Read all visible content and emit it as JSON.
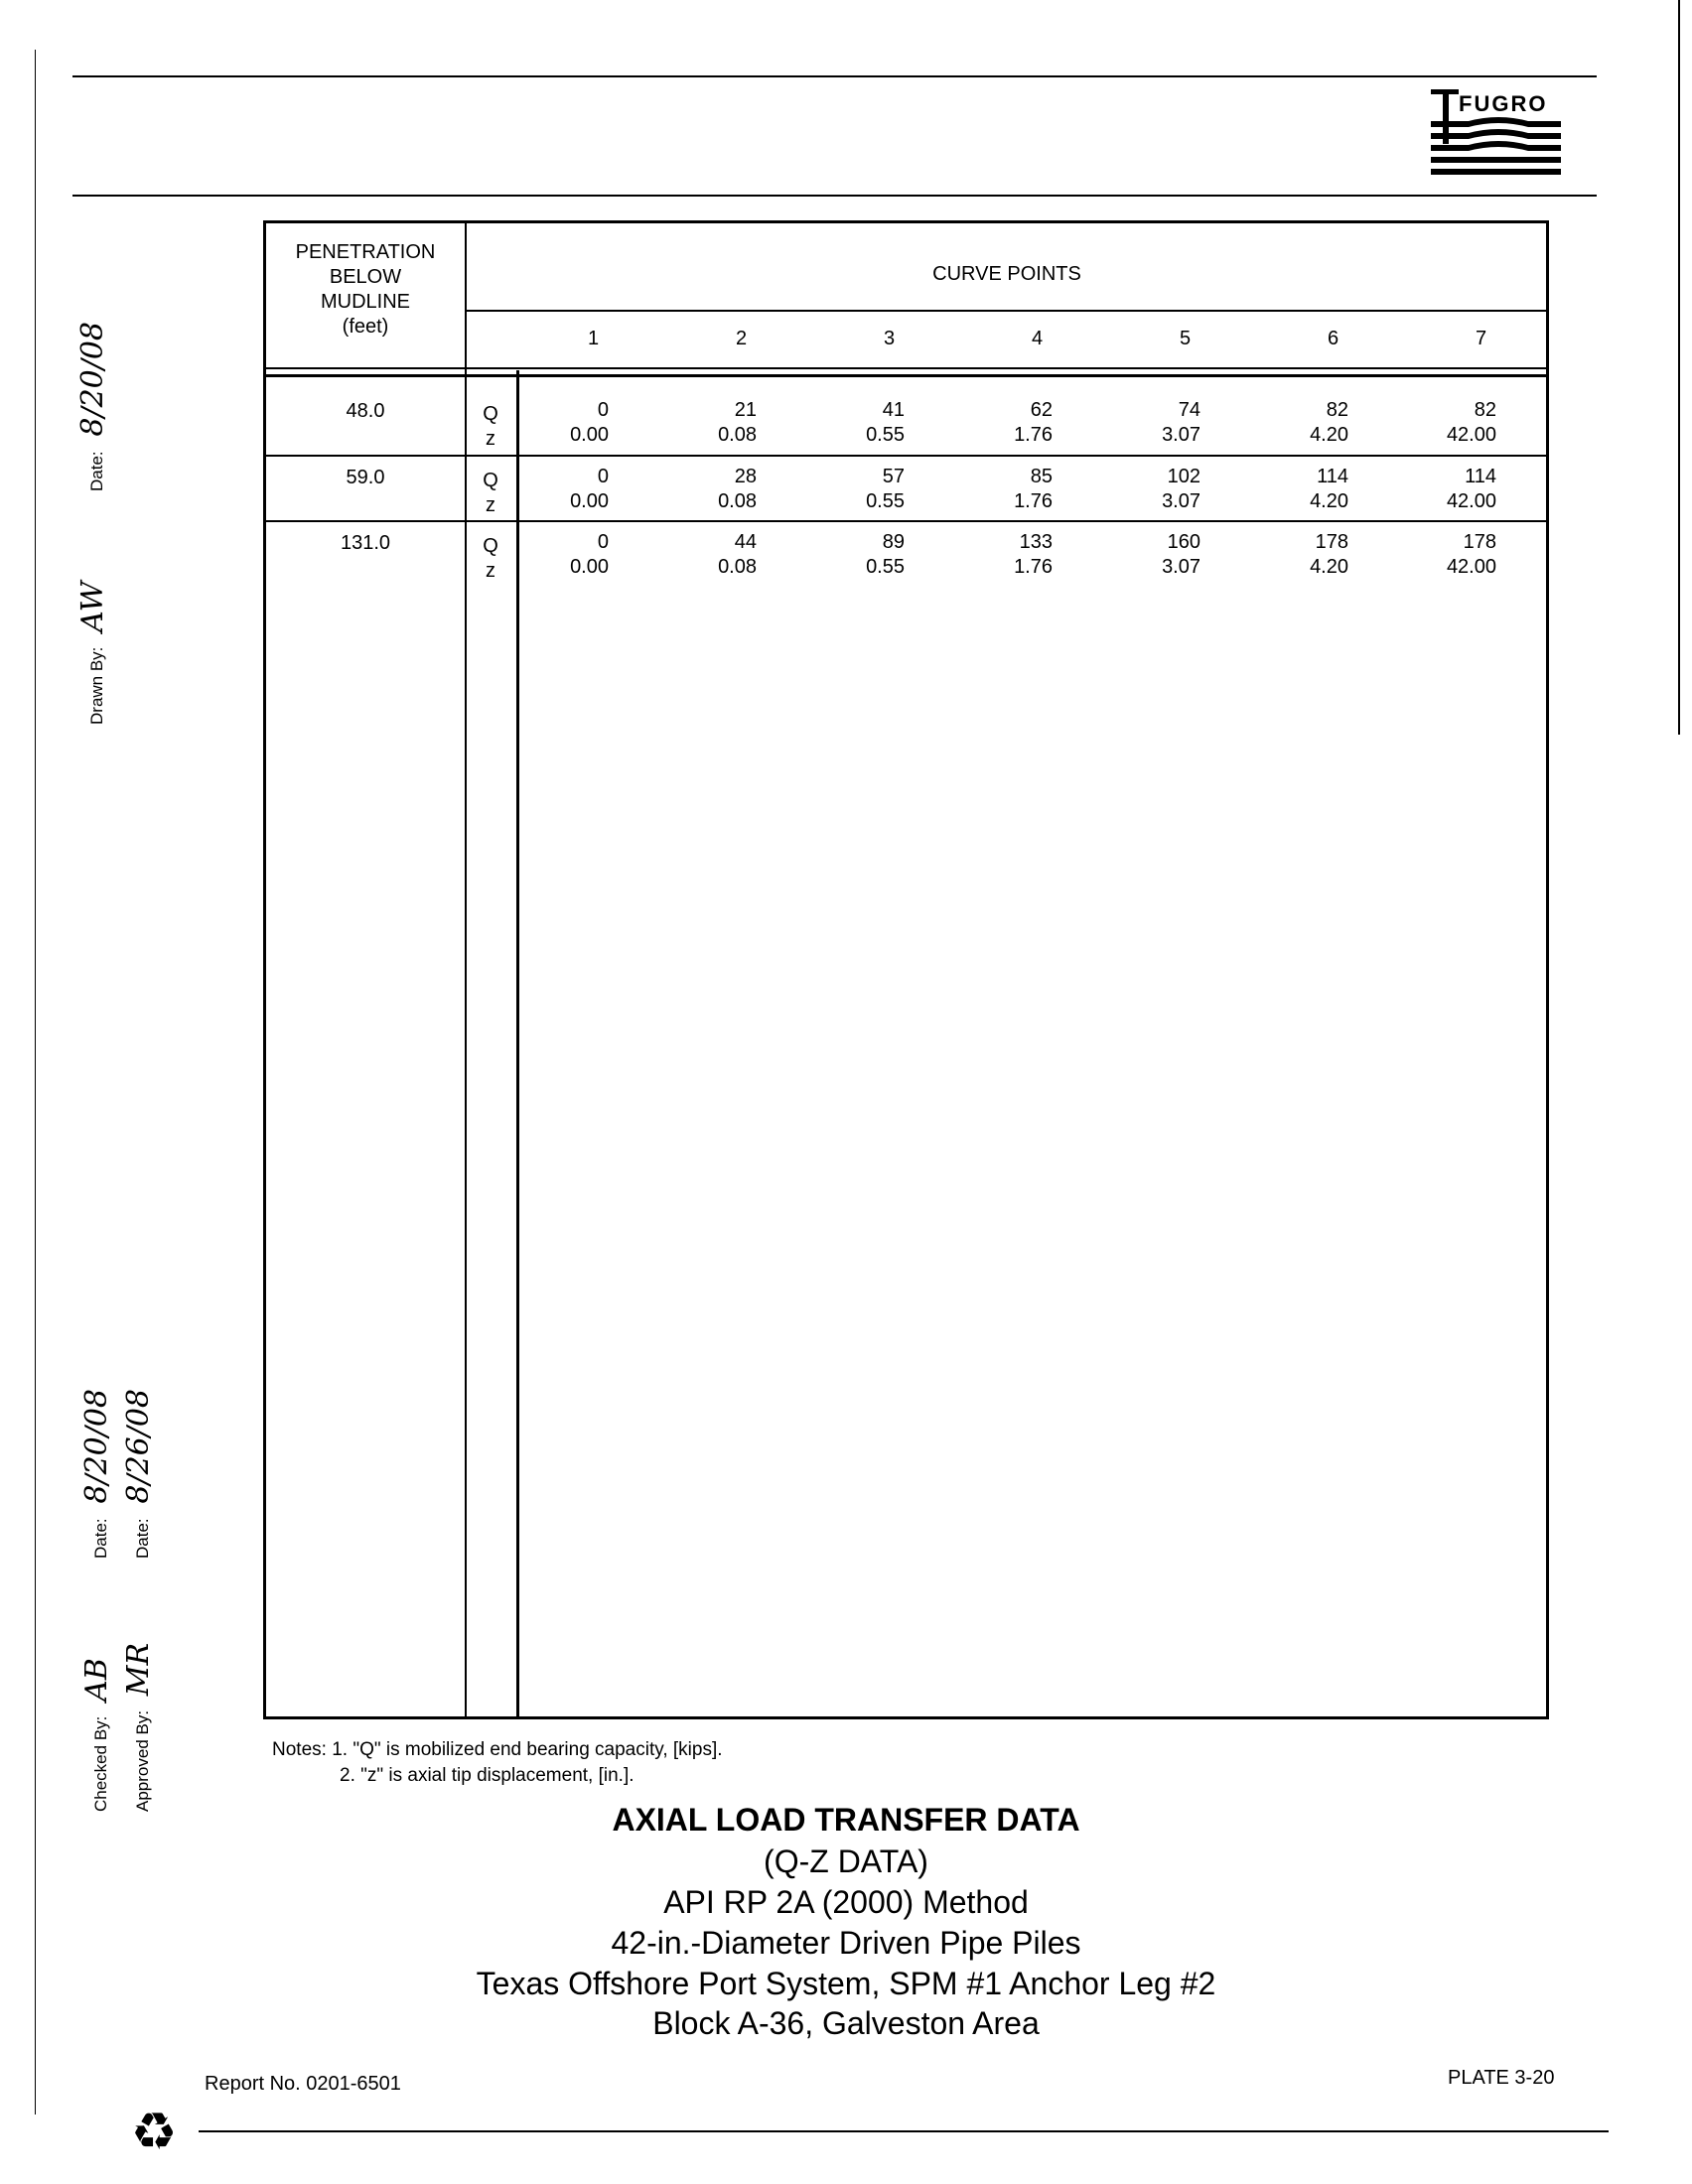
{
  "logo_text": "FUGRO",
  "sidebar": {
    "drawn_by_label": "Drawn By:",
    "drawn_by_signature": "AW",
    "drawn_date_label": "Date:",
    "drawn_date": "8/20/08",
    "checked_by_label": "Checked By:",
    "checked_by_signature": "AB",
    "checked_date_label": "Date:",
    "checked_date": "8/20/08",
    "approved_by_label": "Approved By:",
    "approved_by_signature": "MR",
    "approved_date_label": "Date:",
    "approved_date": "8/26/08"
  },
  "table": {
    "penetration_header": [
      "PENETRATION",
      "BELOW",
      "MUDLINE",
      "(feet)"
    ],
    "curve_points_header": "CURVE POINTS",
    "point_numbers": [
      "1",
      "2",
      "3",
      "4",
      "5",
      "6",
      "7"
    ],
    "rows": [
      {
        "depth": "48.0",
        "q_label": "Q",
        "z_label": "z",
        "Q": [
          "0",
          "21",
          "41",
          "62",
          "74",
          "82",
          "82"
        ],
        "z": [
          "0.00",
          "0.08",
          "0.55",
          "1.76",
          "3.07",
          "4.20",
          "42.00"
        ]
      },
      {
        "depth": "59.0",
        "q_label": "Q",
        "z_label": "z",
        "Q": [
          "0",
          "28",
          "57",
          "85",
          "102",
          "114",
          "114"
        ],
        "z": [
          "0.00",
          "0.08",
          "0.55",
          "1.76",
          "3.07",
          "4.20",
          "42.00"
        ]
      },
      {
        "depth": "131.0",
        "q_label": "Q",
        "z_label": "z",
        "Q": [
          "0",
          "44",
          "89",
          "133",
          "160",
          "178",
          "178"
        ],
        "z": [
          "0.00",
          "0.08",
          "0.55",
          "1.76",
          "3.07",
          "4.20",
          "42.00"
        ]
      }
    ]
  },
  "notes": {
    "label": "Notes:",
    "items": [
      "1. \"Q\" is mobilized end bearing capacity, [kips].",
      "2. \"z\" is axial tip displacement, [in.]."
    ]
  },
  "title_block": {
    "title": "AXIAL LOAD TRANSFER DATA",
    "lines": [
      "(Q-Z DATA)",
      "API RP 2A (2000) Method",
      "42-in.-Diameter Driven Pipe Piles",
      "Texas Offshore Port System, SPM #1 Anchor Leg #2",
      "Block A-36, Galveston Area"
    ]
  },
  "footer": {
    "report_no": "Report No. 0201-6501",
    "plate": "PLATE 3-20",
    "recycle_icon": "recycle-icon"
  }
}
